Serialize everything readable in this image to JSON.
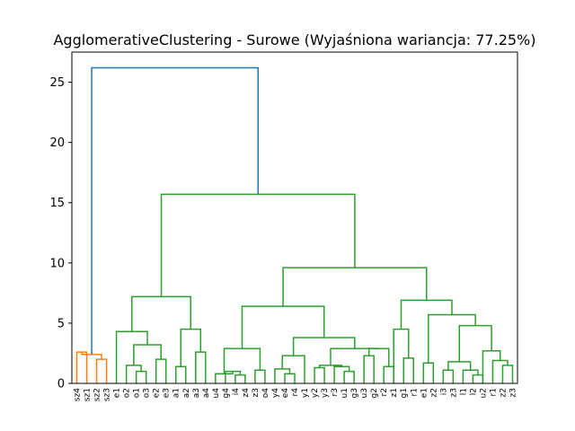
{
  "chart_data": {
    "type": "dendrogram",
    "title": "AgglomerativeClustering - Surowe (Wyjaśniona wariancja: 77.25%)",
    "ylim": [
      0,
      27.5
    ],
    "yticks": [
      0,
      5,
      10,
      15,
      20,
      25
    ],
    "ytick_labels": [
      "0",
      "5",
      "10",
      "15",
      "20",
      "25"
    ],
    "leaves": [
      "sz4",
      "sz1",
      "sz2",
      "sz3",
      "e1",
      "o2",
      "o1",
      "o3",
      "e2",
      "e3",
      "a1",
      "a2",
      "a3",
      "a4",
      "u4",
      "g4",
      "i4",
      "z4",
      "z3",
      "o4",
      "y4",
      "e4",
      "r4",
      "y1",
      "y2",
      "y3",
      "r3",
      "u1",
      "g3",
      "u3",
      "g2",
      "r2",
      "z1",
      "g1",
      "r1",
      "e1",
      "z2",
      "i3",
      "z3",
      "l1",
      "l2",
      "u2",
      "r1",
      "z2",
      "z3"
    ],
    "color_orange": "#ff7f0e",
    "color_green": "#2ca02c",
    "color_blue": "#1f77b4",
    "merges": [
      {
        "left": "leaf:0",
        "right": "leaf:1",
        "height": 2.6,
        "color": "#ff7f0e"
      },
      {
        "left": "leaf:2",
        "right": "leaf:3",
        "height": 2.0,
        "color": "#ff7f0e"
      },
      {
        "left": "node:0",
        "right": "node:1",
        "height": 2.4,
        "color": "#ff7f0e"
      },
      {
        "left": "leaf:6",
        "right": "leaf:7",
        "height": 1.0,
        "color": "#2ca02c"
      },
      {
        "left": "leaf:5",
        "right": "node:3",
        "height": 1.5,
        "color": "#2ca02c"
      },
      {
        "left": "leaf:8",
        "right": "leaf:9",
        "height": 2.0,
        "color": "#2ca02c"
      },
      {
        "left": "node:4",
        "right": "node:5",
        "height": 3.2,
        "color": "#2ca02c"
      },
      {
        "left": "leaf:4",
        "right": "node:6",
        "height": 4.3,
        "color": "#2ca02c"
      },
      {
        "left": "leaf:10",
        "right": "leaf:11",
        "height": 1.4,
        "color": "#2ca02c"
      },
      {
        "left": "leaf:12",
        "right": "leaf:13",
        "height": 2.6,
        "color": "#2ca02c"
      },
      {
        "left": "node:8",
        "right": "node:9",
        "height": 4.5,
        "color": "#2ca02c"
      },
      {
        "left": "node:7",
        "right": "node:10",
        "height": 7.2,
        "color": "#2ca02c"
      },
      {
        "left": "leaf:16",
        "right": "leaf:17",
        "height": 0.7,
        "color": "#2ca02c"
      },
      {
        "left": "leaf:15",
        "right": "node:12",
        "height": 1.0,
        "color": "#2ca02c"
      },
      {
        "left": "leaf:14",
        "right": "node:13",
        "height": 0.8,
        "color": "#2ca02c"
      },
      {
        "left": "leaf:18",
        "right": "leaf:19",
        "height": 1.1,
        "color": "#2ca02c"
      },
      {
        "left": "node:14",
        "right": "node:15",
        "height": 2.9,
        "color": "#2ca02c"
      },
      {
        "left": "leaf:21",
        "right": "leaf:22",
        "height": 0.8,
        "color": "#2ca02c"
      },
      {
        "left": "leaf:20",
        "right": "node:17",
        "height": 1.2,
        "color": "#2ca02c"
      },
      {
        "left": "node:18",
        "right": "leaf:23",
        "height": 2.3,
        "color": "#2ca02c"
      },
      {
        "left": "leaf:24",
        "right": "leaf:25",
        "height": 1.3,
        "color": "#2ca02c"
      },
      {
        "left": "leaf:27",
        "right": "leaf:28",
        "height": 1.0,
        "color": "#2ca02c"
      },
      {
        "left": "leaf:26",
        "right": "node:21",
        "height": 1.4,
        "color": "#2ca02c"
      },
      {
        "left": "node:20",
        "right": "node:22",
        "height": 1.5,
        "color": "#2ca02c"
      },
      {
        "left": "leaf:29",
        "right": "leaf:30",
        "height": 2.3,
        "color": "#2ca02c"
      },
      {
        "left": "leaf:31",
        "right": "leaf:32",
        "height": 1.4,
        "color": "#2ca02c"
      },
      {
        "left": "node:24",
        "right": "node:25",
        "height": 2.9,
        "color": "#2ca02c"
      },
      {
        "left": "node:23",
        "right": "node:26",
        "height": 2.9,
        "color": "#2ca02c"
      },
      {
        "left": "node:19",
        "right": "node:27",
        "height": 3.8,
        "color": "#2ca02c"
      },
      {
        "left": "node:16",
        "right": "node:28",
        "height": 6.4,
        "color": "#2ca02c"
      },
      {
        "left": "leaf:33",
        "right": "leaf:34",
        "height": 2.1,
        "color": "#2ca02c"
      },
      {
        "left": "leaf:32",
        "right": "node:30",
        "height": 4.5,
        "color": "#2ca02c"
      },
      {
        "left": "leaf:35",
        "right": "leaf:36",
        "height": 1.7,
        "color": "#2ca02c"
      },
      {
        "left": "leaf:37",
        "right": "leaf:38",
        "height": 1.1,
        "color": "#2ca02c"
      },
      {
        "left": "leaf:40",
        "right": "leaf:41",
        "height": 0.7,
        "color": "#2ca02c"
      },
      {
        "left": "leaf:39",
        "right": "node:34",
        "height": 1.1,
        "color": "#2ca02c"
      },
      {
        "left": "node:33",
        "right": "node:35",
        "height": 1.8,
        "color": "#2ca02c"
      },
      {
        "left": "leaf:43",
        "right": "leaf:44",
        "height": 1.5,
        "color": "#2ca02c"
      },
      {
        "left": "leaf:42",
        "right": "node:37",
        "height": 1.9,
        "color": "#2ca02c"
      },
      {
        "left": "leaf:41",
        "right": "node:38",
        "height": 2.7,
        "color": "#2ca02c"
      },
      {
        "left": "node:36",
        "right": "node:39",
        "height": 4.8,
        "color": "#2ca02c"
      },
      {
        "left": "node:32",
        "right": "node:40",
        "height": 5.7,
        "color": "#2ca02c"
      },
      {
        "left": "node:31",
        "right": "node:41",
        "height": 6.9,
        "color": "#2ca02c"
      },
      {
        "left": "node:29",
        "right": "node:42",
        "height": 9.6,
        "color": "#2ca02c"
      },
      {
        "left": "node:11",
        "right": "node:43",
        "height": 15.7,
        "color": "#2ca02c"
      },
      {
        "left": "node:2",
        "right": "node:44",
        "height": 26.2,
        "color": "#1f77b4"
      }
    ]
  }
}
